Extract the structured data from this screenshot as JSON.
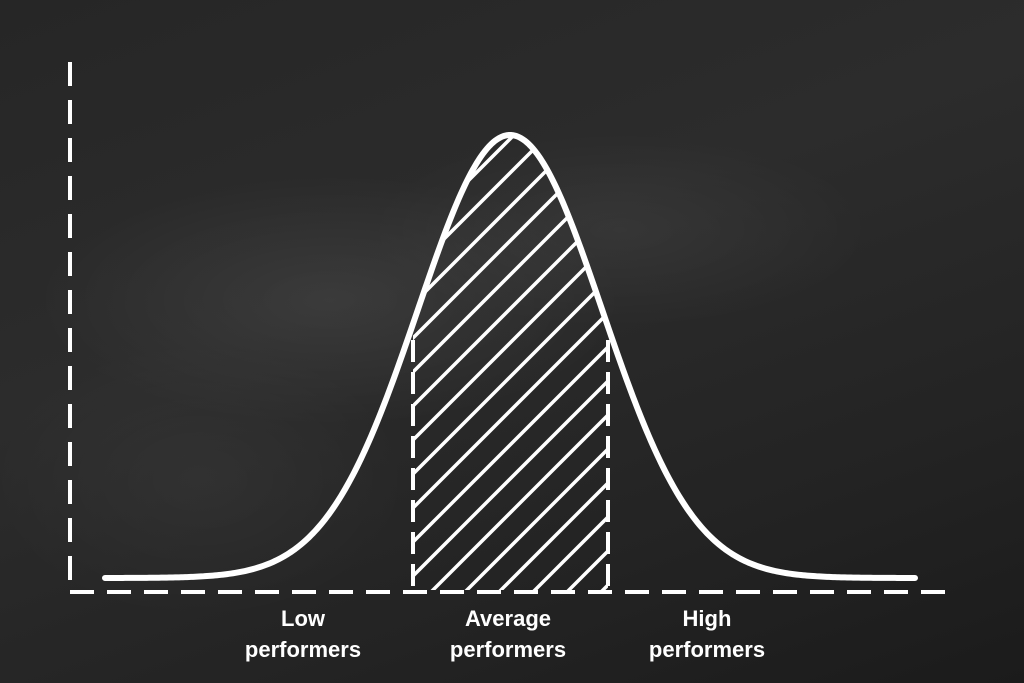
{
  "categories": [
    {
      "id": "low",
      "line1": "Low",
      "line2": "performers"
    },
    {
      "id": "average",
      "line1": "Average",
      "line2": "performers"
    },
    {
      "id": "high",
      "line1": "High",
      "line2": "performers"
    }
  ],
  "colors": {
    "chalk": "#ffffff",
    "board": "#262626"
  },
  "shaded_region": "average"
}
